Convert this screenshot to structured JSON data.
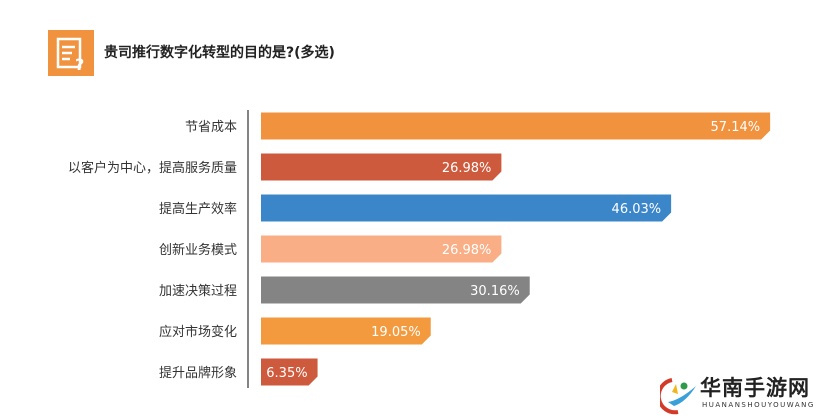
{
  "chart_data": {
    "type": "bar",
    "orientation": "horizontal",
    "title": "贵司推行数字化转型的目的是?(多选)",
    "categories": [
      "节省成本",
      "以客户为中心，提高服务质量",
      "提高生产效率",
      "创新业务模式",
      "加速决策过程",
      "应对市场变化",
      "提升品牌形象"
    ],
    "values": [
      57.14,
      26.98,
      46.03,
      26.98,
      30.16,
      19.05,
      6.35
    ],
    "labels": [
      "57.14%",
      "26.98%",
      "46.03%",
      "26.98%",
      "30.16%",
      "19.05%",
      "6.35%"
    ],
    "colors": [
      "#F0923E",
      "#CE5A3E",
      "#3A86C8",
      "#F9AE85",
      "#848484",
      "#F39A3E",
      "#CE5A3E"
    ],
    "unit": "%",
    "xlim": [
      0,
      100
    ],
    "grid": false,
    "legend": "none"
  },
  "header": {
    "icon": "survey-question-icon"
  },
  "watermark": {
    "name": "华南手游网",
    "subtitle": "HUANANSHOUYOUWANG"
  }
}
